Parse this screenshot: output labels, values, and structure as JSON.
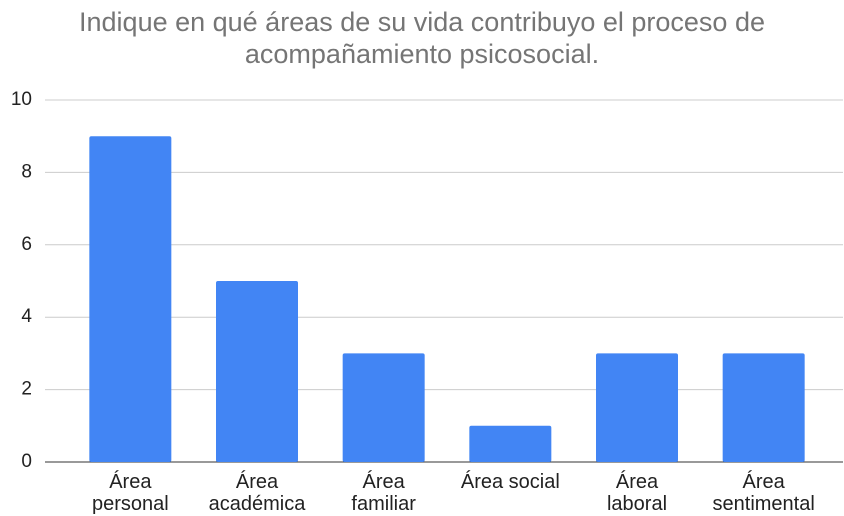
{
  "chart_data": {
    "type": "bar",
    "title": "Indique en qué áreas de su vida contribuyo el proceso de acompañamiento psicosocial.",
    "categories": [
      "Área personal",
      "Área académica",
      "Área familiar",
      "Área social",
      "Área laboral",
      "Área sentimental"
    ],
    "values": [
      9,
      5,
      3,
      1,
      3,
      3
    ],
    "color": "#4285f4",
    "ylim": [
      0,
      10
    ],
    "yticks": [
      0,
      2,
      4,
      6,
      8,
      10
    ],
    "grid": true
  }
}
